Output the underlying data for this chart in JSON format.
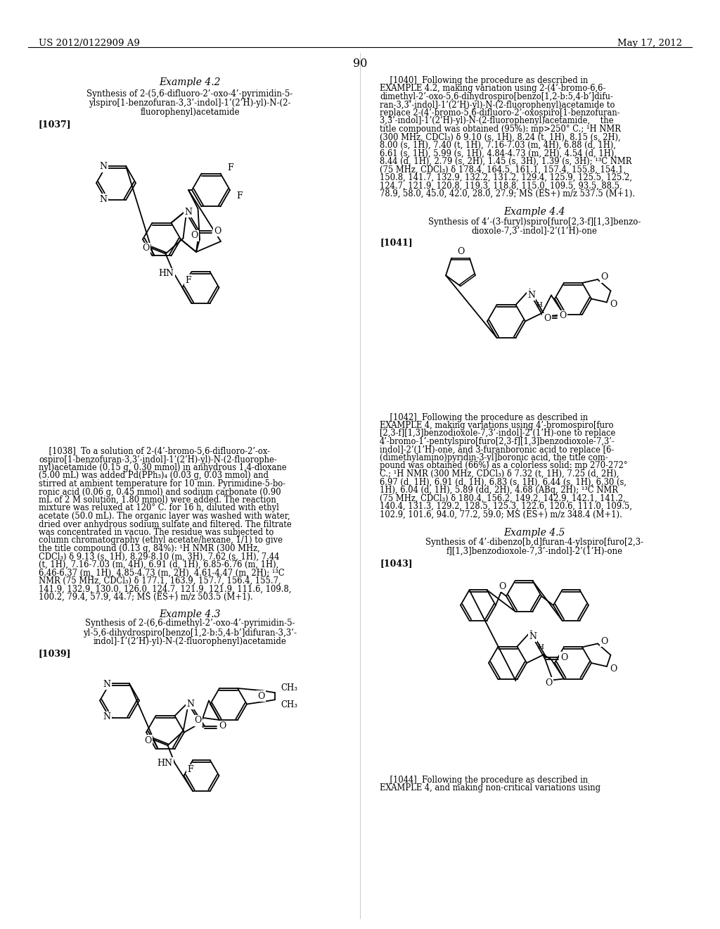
{
  "background_color": "#ffffff",
  "header_left": "US 2012/0122909 A9",
  "header_right": "May 17, 2012",
  "page_number": "90"
}
